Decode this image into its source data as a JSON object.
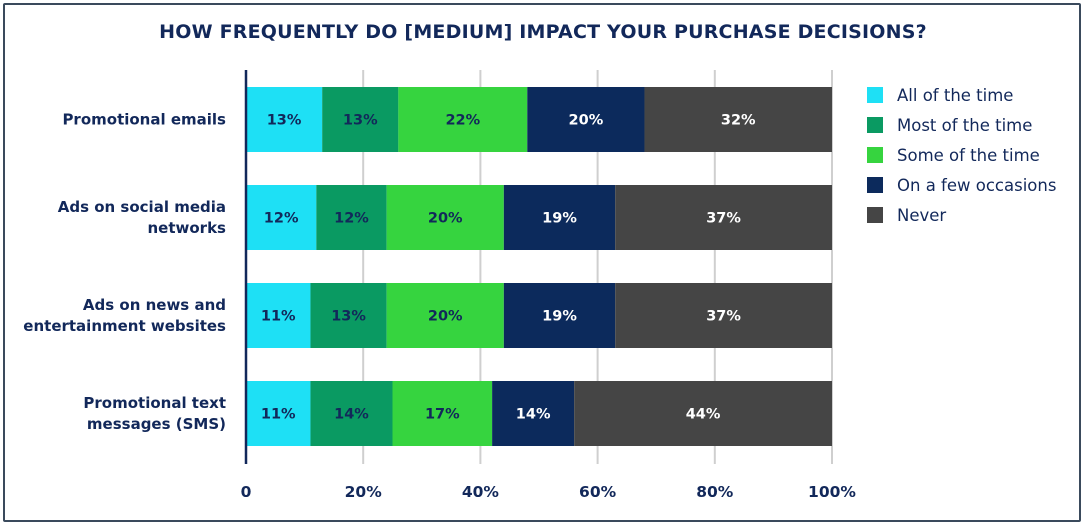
{
  "chart_data": {
    "type": "bar",
    "orientation": "horizontal",
    "stacked": true,
    "title": "HOW FREQUENTLY DO [MEDIUM] IMPACT YOUR PURCHASE DECISIONS?",
    "categories": [
      [
        "Promotional emails"
      ],
      [
        "Ads on social media",
        "networks"
      ],
      [
        "Ads on news and",
        "entertainment websites"
      ],
      [
        "Promotional text",
        "messages (SMS)"
      ]
    ],
    "series": [
      {
        "name": "All of the time",
        "color": "#1ee0f5",
        "label_color": "#12285a",
        "values": [
          13,
          12,
          11,
          11
        ]
      },
      {
        "name": "Most of the time",
        "color": "#0a9a62",
        "label_color": "#12285a",
        "values": [
          13,
          12,
          13,
          14
        ]
      },
      {
        "name": "Some of the time",
        "color": "#36d43f",
        "label_color": "#12285a",
        "values": [
          22,
          20,
          20,
          17
        ]
      },
      {
        "name": "On a few occasions",
        "color": "#0c2a5c",
        "label_color": "#ffffff",
        "values": [
          20,
          19,
          19,
          14
        ]
      },
      {
        "name": "Never",
        "color": "#454545",
        "label_color": "#ffffff",
        "values": [
          32,
          37,
          37,
          44
        ]
      }
    ],
    "value_suffix": "%",
    "x_ticks": [
      "0",
      "20%",
      "40%",
      "60%",
      "80%",
      "100%"
    ],
    "xlim": [
      0,
      100
    ],
    "grid": true,
    "legend_position": "right"
  }
}
